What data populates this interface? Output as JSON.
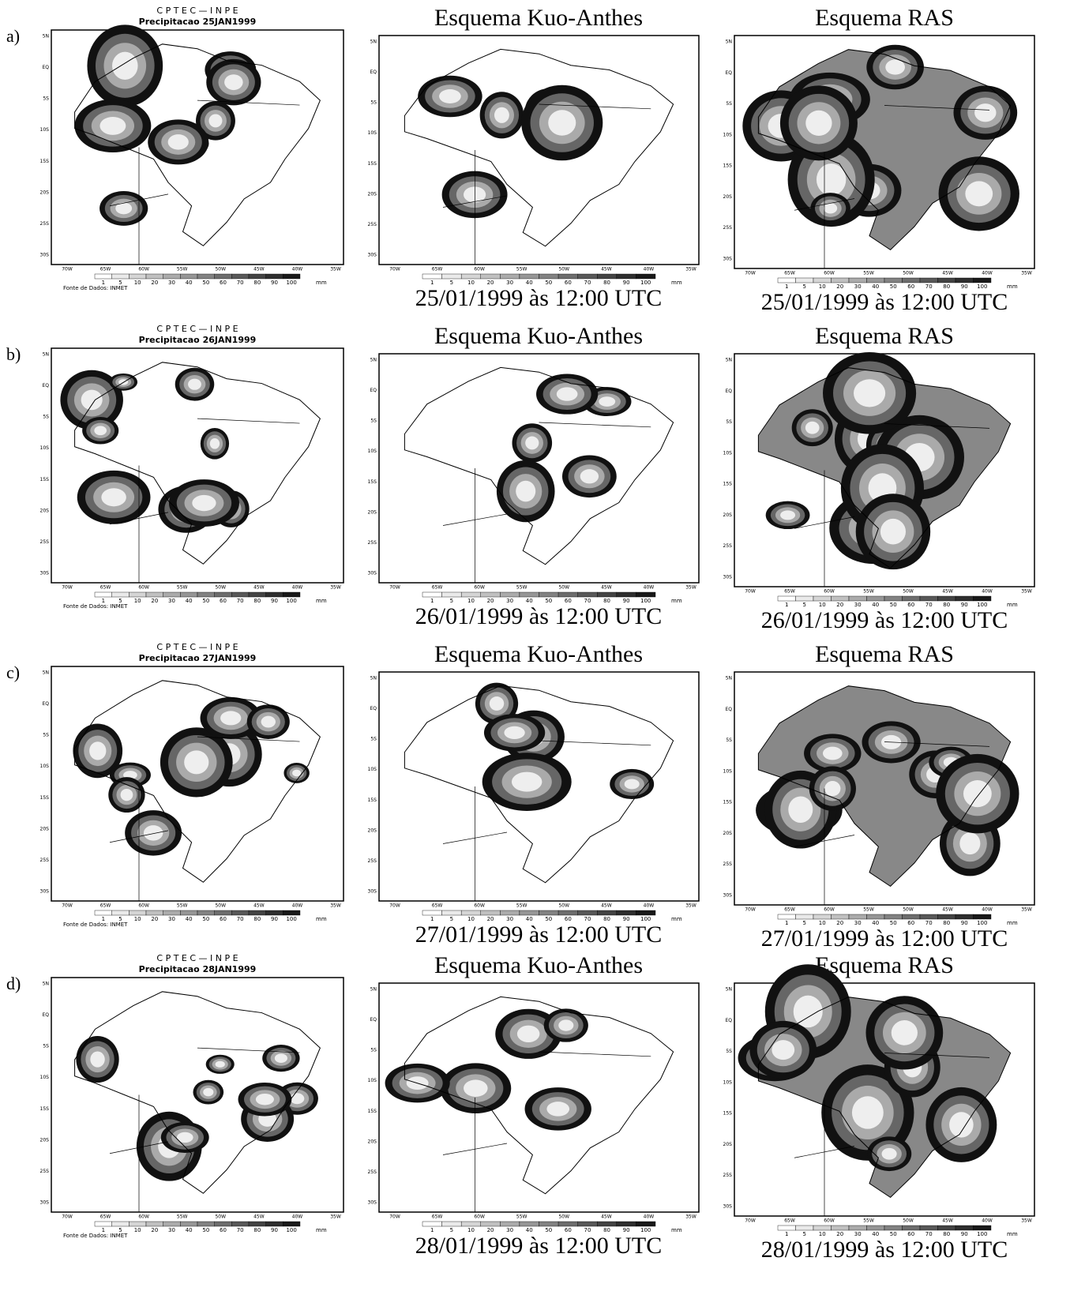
{
  "observed_header": "C P T E C — I N P E",
  "model_titles": {
    "kuo": "Esquema Kuo-Anthes",
    "ras": "Esquema RAS"
  },
  "map_axes": {
    "lat_labels": [
      "5N",
      "EQ",
      "5S",
      "10S",
      "15S",
      "20S",
      "25S",
      "30S"
    ],
    "lon_labels": [
      "70W",
      "65W",
      "60W",
      "55W",
      "50W",
      "45W",
      "40W",
      "35W"
    ]
  },
  "colorbar": {
    "labels": [
      "1",
      "5",
      "10",
      "20",
      "30",
      "40",
      "50",
      "60",
      "70",
      "80",
      "90",
      "100"
    ],
    "unit": "mm"
  },
  "source": "Fonte de Dados: INMET",
  "rows": [
    {
      "label": "a)",
      "observed_title": "Precipitacao 25JAN1999",
      "kuo_caption": "25/01/1999 às  12:00 UTC",
      "ras_caption": "25/01/1999 às  12:00 UTC"
    },
    {
      "label": "b)",
      "observed_title": "Precipitacao 26JAN1999",
      "kuo_caption": "26/01/1999 às 12:00 UTC",
      "ras_caption": "26/01/1999 às 12:00 UTC"
    },
    {
      "label": "c)",
      "observed_title": "Precipitacao 27JAN1999",
      "kuo_caption": "27/01/1999 às 12:00 UTC",
      "ras_caption": "27/01/1999 às 12:00 UTC"
    },
    {
      "label": "d)",
      "observed_title": "Precipitacao 28JAN1999",
      "kuo_caption": "28/01/1999 às 12:00 UTC",
      "ras_caption": "28/01/1999 às 12:00 UTC"
    }
  ]
}
